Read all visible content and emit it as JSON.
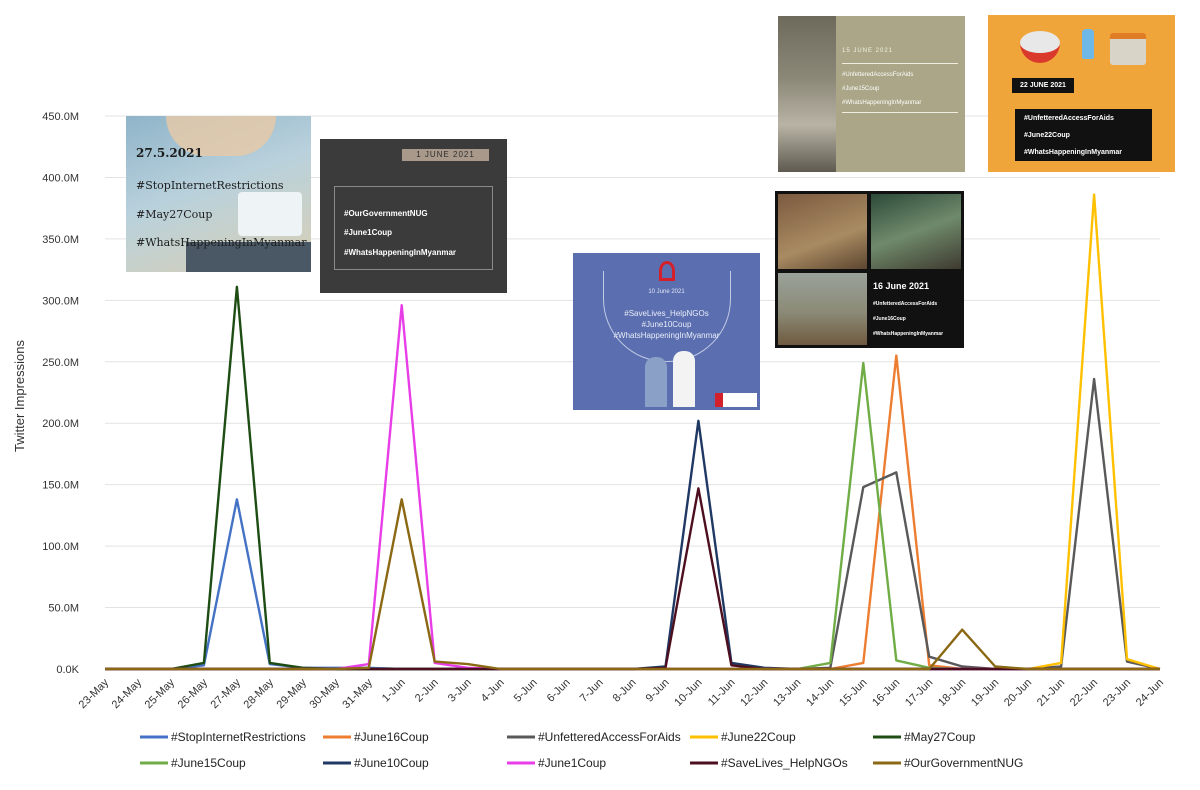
{
  "chart_data": {
    "type": "line",
    "ylabel": "Twitter Impressions",
    "xlabel": "",
    "ylim": [
      0,
      450000000
    ],
    "yticks": [
      {
        "value": 0,
        "label": "0.0K"
      },
      {
        "value": 50000000,
        "label": "50.0M"
      },
      {
        "value": 100000000,
        "label": "100.0M"
      },
      {
        "value": 150000000,
        "label": "150.0M"
      },
      {
        "value": 200000000,
        "label": "200.0M"
      },
      {
        "value": 250000000,
        "label": "250.0M"
      },
      {
        "value": 300000000,
        "label": "300.0M"
      },
      {
        "value": 350000000,
        "label": "350.0M"
      },
      {
        "value": 400000000,
        "label": "400.0M"
      },
      {
        "value": 450000000,
        "label": "450.0M"
      }
    ],
    "categories": [
      "23-May",
      "24-May",
      "25-May",
      "26-May",
      "27-May",
      "28-May",
      "29-May",
      "30-May",
      "31-May",
      "1-Jun",
      "2-Jun",
      "3-Jun",
      "4-Jun",
      "5-Jun",
      "6-Jun",
      "7-Jun",
      "8-Jun",
      "9-Jun",
      "10-Jun",
      "11-Jun",
      "12-Jun",
      "13-Jun",
      "14-Jun",
      "15-Jun",
      "16-Jun",
      "17-Jun",
      "18-Jun",
      "19-Jun",
      "20-Jun",
      "21-Jun",
      "22-Jun",
      "23-Jun",
      "24-Jun"
    ],
    "grid": true,
    "legend_position": "bottom",
    "series": [
      {
        "name": "#StopInternetRestrictions",
        "color": "#4472c4",
        "values": [
          0,
          0,
          0,
          3000000,
          138000000,
          4000000,
          1000000,
          1000000,
          1000000,
          0,
          0,
          0,
          0,
          0,
          0,
          0,
          0,
          0,
          0,
          0,
          0,
          0,
          0,
          0,
          0,
          0,
          0,
          0,
          0,
          0,
          0,
          0,
          0
        ]
      },
      {
        "name": "#June16Coup",
        "color": "#ed7d31",
        "values": [
          0,
          0,
          0,
          0,
          0,
          0,
          0,
          0,
          0,
          0,
          0,
          0,
          0,
          0,
          0,
          0,
          0,
          0,
          0,
          0,
          0,
          0,
          0,
          5000000,
          255000000,
          3000000,
          0,
          0,
          0,
          0,
          0,
          0,
          0
        ]
      },
      {
        "name": "#UnfetteredAccessForAids",
        "color": "#595959",
        "values": [
          0,
          0,
          0,
          0,
          0,
          0,
          0,
          0,
          0,
          0,
          0,
          0,
          0,
          0,
          0,
          0,
          0,
          0,
          0,
          0,
          0,
          0,
          1000000,
          148000000,
          160000000,
          10000000,
          2000000,
          0,
          0,
          2000000,
          236000000,
          6000000,
          0
        ]
      },
      {
        "name": "#June22Coup",
        "color": "#ffc000",
        "values": [
          0,
          0,
          0,
          0,
          0,
          0,
          0,
          0,
          0,
          0,
          0,
          0,
          0,
          0,
          0,
          0,
          0,
          0,
          0,
          0,
          0,
          0,
          0,
          0,
          0,
          0,
          0,
          0,
          0,
          5000000,
          386000000,
          8000000,
          0
        ]
      },
      {
        "name": "#May27Coup",
        "color": "#1e4d14",
        "values": [
          0,
          0,
          0,
          5000000,
          311000000,
          5000000,
          1000000,
          0,
          0,
          0,
          0,
          0,
          0,
          0,
          0,
          0,
          0,
          0,
          0,
          0,
          0,
          0,
          0,
          0,
          0,
          0,
          0,
          0,
          0,
          0,
          0,
          0,
          0
        ]
      },
      {
        "name": "#June15Coup",
        "color": "#70ad47",
        "values": [
          0,
          0,
          0,
          0,
          0,
          0,
          0,
          0,
          0,
          0,
          0,
          0,
          0,
          0,
          0,
          0,
          0,
          0,
          0,
          0,
          0,
          0,
          5000000,
          249000000,
          7000000,
          1000000,
          0,
          0,
          0,
          0,
          0,
          0,
          0
        ]
      },
      {
        "name": "#June10Coup",
        "color": "#203864",
        "values": [
          0,
          0,
          0,
          0,
          0,
          0,
          0,
          0,
          0,
          0,
          0,
          0,
          0,
          0,
          0,
          0,
          0,
          2000000,
          202000000,
          5000000,
          1000000,
          0,
          0,
          0,
          0,
          0,
          0,
          0,
          0,
          0,
          0,
          0,
          0
        ]
      },
      {
        "name": "#June1Coup",
        "color": "#e83ee8",
        "values": [
          0,
          0,
          0,
          0,
          0,
          0,
          0,
          0,
          4000000,
          296000000,
          5000000,
          1000000,
          0,
          0,
          0,
          0,
          0,
          0,
          0,
          0,
          0,
          0,
          0,
          0,
          0,
          0,
          0,
          0,
          0,
          0,
          0,
          0,
          0
        ]
      },
      {
        "name": "#SaveLives_HelpNGOs",
        "color": "#4d0f1f",
        "values": [
          0,
          0,
          0,
          0,
          0,
          0,
          0,
          0,
          0,
          0,
          0,
          0,
          0,
          0,
          0,
          0,
          0,
          1000000,
          147000000,
          3000000,
          0,
          0,
          0,
          0,
          0,
          0,
          0,
          0,
          0,
          0,
          0,
          0,
          0
        ]
      },
      {
        "name": "#OurGovernmentNUG",
        "color": "#8b6914",
        "values": [
          0,
          0,
          0,
          0,
          0,
          0,
          0,
          0,
          1000000,
          138000000,
          6000000,
          4000000,
          0,
          0,
          0,
          0,
          0,
          0,
          0,
          0,
          0,
          0,
          0,
          0,
          0,
          0,
          32000000,
          2000000,
          0,
          0,
          0,
          0,
          0
        ]
      }
    ]
  },
  "posters": {
    "may27": {
      "date": "27.5.2021",
      "lines": [
        "#StopInternetRestrictions",
        "#May27Coup",
        "#WhatsHappeningInMyanmar"
      ]
    },
    "june1": {
      "date": "1 JUNE 2021",
      "lines": [
        "#OurGovernmentNUG",
        "#June1Coup",
        "#WhatsHappeningInMyanmar"
      ]
    },
    "june10": {
      "date": "10 June 2021",
      "lines": [
        "#SaveLives_HelpNGOs",
        "#June10Coup",
        "#WhatsHappeningInMyanmar"
      ]
    },
    "june15": {
      "date": "15 JUNE 2021",
      "lines": [
        "#UnfetteredAccessForAids",
        "#June15Coup",
        "#WhatsHappeningInMyanmar"
      ]
    },
    "june16": {
      "date": "16 June 2021",
      "lines": [
        "#UnfetteredAccessForAids",
        "#June16Coup",
        "#WhatsHappeningInMyanmar"
      ]
    },
    "june22": {
      "date": "22 JUNE 2021",
      "lines": [
        "#UnfetteredAccessForAids",
        "#June22Coup",
        "#WhatsHappeningInMyanmar"
      ]
    }
  }
}
